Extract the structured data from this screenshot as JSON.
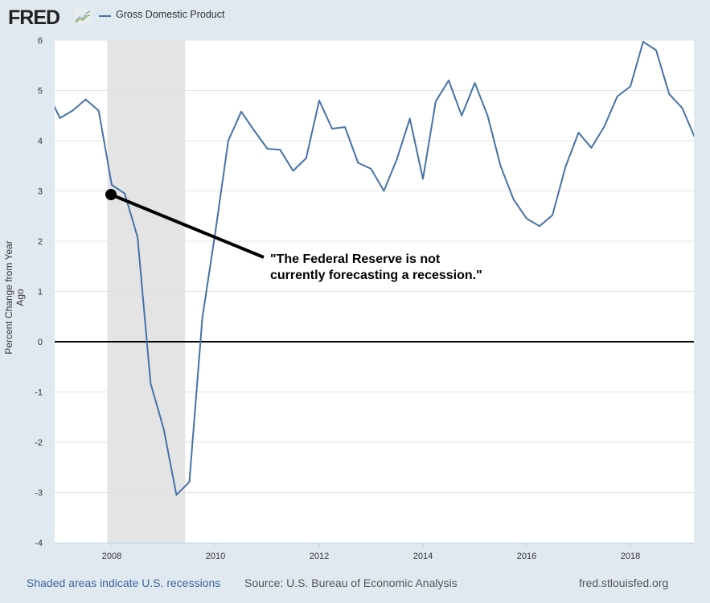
{
  "header": {
    "logo": "FRED",
    "legend": "Gross Domestic Product"
  },
  "footer": {
    "recession_note": "Shaded areas indicate U.S. recessions",
    "source": "Source: U.S. Bureau of Economic Analysis",
    "site": "fred.stlouisfed.org"
  },
  "annotation": "\"The Federal Reserve is not currently forecasting a recession.\"",
  "chart_data": {
    "type": "line",
    "title": "",
    "xlabel": "",
    "ylabel": "Percent Change from Year Ago",
    "ylim": [
      -4,
      6
    ],
    "xlim": [
      "2006-11-15",
      "2019-04-01"
    ],
    "yticks": [
      "6",
      "5",
      "4",
      "3",
      "2",
      "1",
      "0",
      "-1",
      "-2",
      "-3",
      "-4"
    ],
    "xticks": [
      "2008",
      "2010",
      "2012",
      "2014",
      "2016",
      "2018"
    ],
    "grid": true,
    "legend": "top-left",
    "line_color": "#4572a7",
    "recessions": [
      [
        "2007-12-01",
        "2009-06-01"
      ]
    ],
    "series": [
      {
        "name": "Gross Domestic Product",
        "x": [
          "2006-10-01",
          "2007-01-01",
          "2007-04-01",
          "2007-07-01",
          "2007-10-01",
          "2008-01-01",
          "2008-04-01",
          "2008-07-01",
          "2008-10-01",
          "2009-01-01",
          "2009-04-01",
          "2009-07-01",
          "2009-10-01",
          "2010-01-01",
          "2010-04-01",
          "2010-07-01",
          "2010-10-01",
          "2011-01-01",
          "2011-04-01",
          "2011-07-01",
          "2011-10-01",
          "2012-01-01",
          "2012-04-01",
          "2012-07-01",
          "2012-10-01",
          "2013-01-01",
          "2013-04-01",
          "2013-07-01",
          "2013-10-01",
          "2014-01-01",
          "2014-04-01",
          "2014-07-01",
          "2014-10-01",
          "2015-01-01",
          "2015-04-01",
          "2015-07-01",
          "2015-10-01",
          "2016-01-01",
          "2016-04-01",
          "2016-07-01",
          "2016-10-01",
          "2017-01-01",
          "2017-04-01",
          "2017-07-01",
          "2017-10-01",
          "2018-01-01",
          "2018-04-01",
          "2018-07-01",
          "2018-10-01",
          "2019-01-01",
          "2019-04-01"
        ],
        "values": [
          5.0,
          4.45,
          4.6,
          4.82,
          4.6,
          3.12,
          2.95,
          2.08,
          -0.83,
          -1.73,
          -3.05,
          -2.79,
          0.48,
          2.2,
          4.0,
          4.58,
          4.2,
          3.84,
          3.82,
          3.4,
          3.65,
          4.8,
          4.24,
          4.27,
          3.56,
          3.44,
          3.0,
          3.63,
          4.44,
          3.24,
          4.78,
          5.2,
          4.5,
          5.15,
          4.5,
          3.5,
          2.83,
          2.45,
          2.3,
          2.52,
          3.48,
          4.16,
          3.86,
          4.28,
          4.88,
          5.08,
          5.97,
          5.8,
          4.93,
          4.65,
          4.05
        ]
      }
    ]
  }
}
